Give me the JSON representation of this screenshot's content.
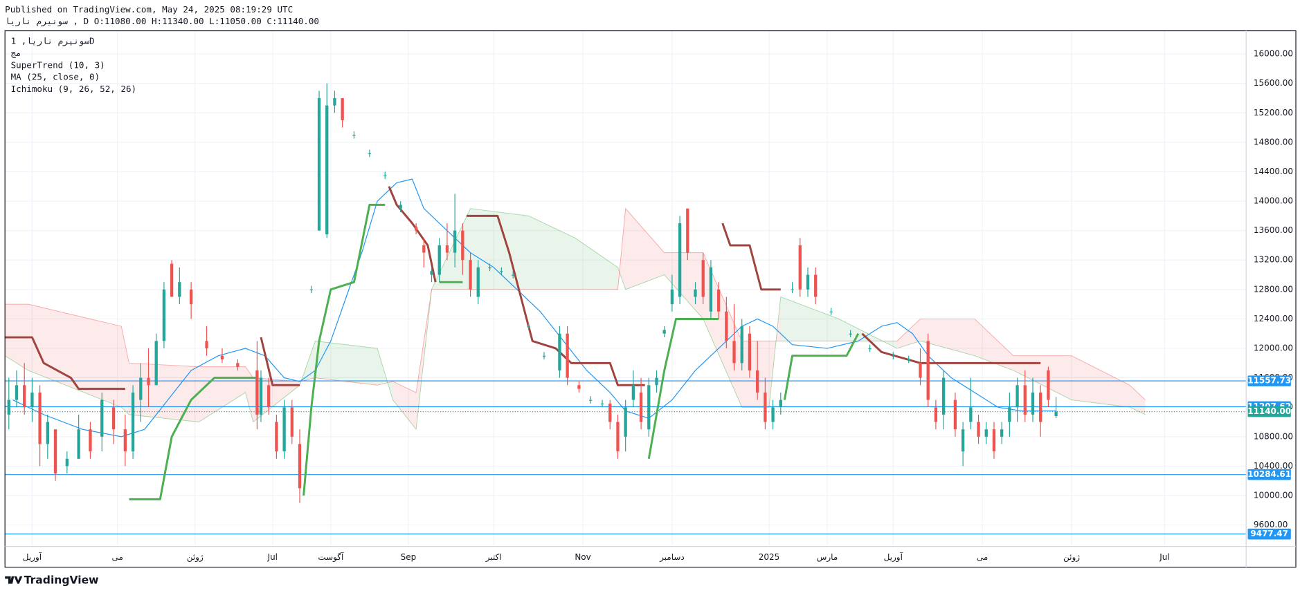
{
  "header": {
    "published": "Published on TradingView.com, May 24, 2025 08:19:29 UTC",
    "symbol_line": "سونیرم ناریا , D O:11080.00 H:11340.00 L:11050.00 C:11140.00"
  },
  "footer": {
    "brand": "TradingView"
  },
  "chart_data": {
    "type": "candlestick",
    "legend": [
      "سونیرم ناریا, 1D",
      "مج",
      "SuperTrend (10, 3)",
      "MA (25, close, 0)",
      "Ichimoku (9, 26, 52, 26)"
    ],
    "up_color": "#26a69a",
    "down_color": "#ef5350",
    "xlim": [
      0,
      320
    ],
    "xticks": [
      {
        "value": 7,
        "label": "آوریل"
      },
      {
        "value": 29,
        "label": "می"
      },
      {
        "value": 49,
        "label": "ژوئن"
      },
      {
        "value": 69,
        "label": "Jul"
      },
      {
        "value": 84,
        "label": "آگوست"
      },
      {
        "value": 104,
        "label": "Sep"
      },
      {
        "value": 126,
        "label": "اکتبر"
      },
      {
        "value": 149,
        "label": "Nov"
      },
      {
        "value": 172,
        "label": "دسامبر"
      },
      {
        "value": 197,
        "label": "2025"
      },
      {
        "value": 212,
        "label": "مارس"
      },
      {
        "value": 229,
        "label": "آوریل"
      },
      {
        "value": 252,
        "label": "می"
      },
      {
        "value": 275,
        "label": "ژوئن"
      },
      {
        "value": 299,
        "label": "Jul"
      }
    ],
    "ylim": [
      9308,
      16315
    ],
    "yticks": [
      {
        "value": 9600,
        "label": "9600.00"
      },
      {
        "value": 10000,
        "label": "10000.00"
      },
      {
        "value": 10400,
        "label": "10400.00"
      },
      {
        "value": 10800,
        "label": "10800.00"
      },
      {
        "value": 11200,
        "label": "11200.00"
      },
      {
        "value": 11600,
        "label": "11600.00"
      },
      {
        "value": 12000,
        "label": "12000.00"
      },
      {
        "value": 12400,
        "label": "12400.00"
      },
      {
        "value": 12800,
        "label": "12800.00"
      },
      {
        "value": 13200,
        "label": "13200.00"
      },
      {
        "value": 13600,
        "label": "13600.00"
      },
      {
        "value": 14000,
        "label": "14000.00"
      },
      {
        "value": 14400,
        "label": "14400.00"
      },
      {
        "value": 14800,
        "label": "14800.00"
      },
      {
        "value": 15200,
        "label": "15200.00"
      },
      {
        "value": 15600,
        "label": "15600.00"
      },
      {
        "value": 16000,
        "label": "16000.00"
      }
    ],
    "grid": true,
    "candles": {
      "x": [
        1,
        3,
        5,
        7,
        9,
        11,
        13,
        16,
        19,
        22,
        25,
        28,
        31,
        33,
        35,
        37,
        39,
        41,
        43,
        45,
        48,
        52,
        56,
        60,
        65,
        66,
        68,
        70,
        72,
        74,
        76,
        79,
        81,
        83,
        85,
        87,
        90,
        94,
        98,
        102,
        106,
        108,
        110,
        112,
        114,
        116,
        118,
        120,
        122,
        125,
        128,
        131,
        135,
        139,
        143,
        145,
        148,
        151,
        154,
        156,
        158,
        160,
        162,
        164,
        166,
        168,
        170,
        172,
        174,
        176,
        178,
        180,
        182,
        184,
        186,
        188,
        190,
        192,
        194,
        196,
        198,
        200,
        203,
        205,
        207,
        209,
        213,
        218,
        223,
        229,
        233,
        236,
        238,
        240,
        242,
        245,
        247,
        249,
        251,
        253,
        255,
        257,
        259,
        261,
        263,
        265,
        267,
        269,
        271
      ],
      "open": [
        11100,
        11300,
        11500,
        11200,
        11400,
        10700,
        10900,
        10400,
        10500,
        10900,
        10800,
        11200,
        10900,
        10600,
        11300,
        11600,
        11500,
        12100,
        13150,
        12700,
        12800,
        12100,
        11900,
        11800,
        11700,
        11100,
        11500,
        11000,
        10600,
        11200,
        10700,
        12800,
        13600,
        13550,
        15300,
        15400,
        14900,
        14650,
        14350,
        13900,
        13650,
        13400,
        13000,
        13000,
        13400,
        13300,
        13600,
        13200,
        12700,
        13100,
        13050,
        13000,
        12300,
        11900,
        11700,
        12200,
        11500,
        11300,
        11250,
        11250,
        11000,
        10800,
        11300,
        11400,
        10900,
        11500,
        12200,
        12600,
        12700,
        13900,
        12700,
        13200,
        12500,
        12800,
        12500,
        12100,
        11800,
        12200,
        11700,
        11400,
        11000,
        11200,
        12800,
        13400,
        12800,
        13000,
        12500,
        12200,
        12000,
        11900,
        11850,
        11800,
        12100,
        11200,
        11100,
        11300,
        10600,
        11000,
        11000,
        10800,
        10900,
        10800,
        11000,
        11200,
        11500,
        11100,
        11400,
        11700,
        11080
      ],
      "high": [
        11600,
        11700,
        11800,
        11600,
        11500,
        11100,
        10900,
        10600,
        11100,
        11000,
        11400,
        11300,
        11100,
        11500,
        11800,
        12000,
        12200,
        12900,
        13200,
        13100,
        12900,
        12300,
        12000,
        11850,
        12100,
        11700,
        11600,
        11100,
        11300,
        11300,
        10900,
        12850,
        15500,
        15600,
        15500,
        15400,
        14950,
        14700,
        14400,
        14000,
        13700,
        13500,
        13100,
        13500,
        13700,
        14100,
        13700,
        13300,
        13200,
        13150,
        13100,
        13050,
        12350,
        11950,
        12300,
        12300,
        11550,
        11350,
        11300,
        11300,
        11100,
        11300,
        11700,
        11600,
        11600,
        11700,
        12300,
        13000,
        13800,
        13900,
        12900,
        13300,
        13200,
        12900,
        12700,
        12600,
        12400,
        12300,
        12100,
        11600,
        11300,
        11400,
        12900,
        13500,
        13100,
        13100,
        12550,
        12250,
        12050,
        11950,
        11900,
        12000,
        12200,
        11300,
        11700,
        11400,
        11000,
        11600,
        11100,
        11000,
        11000,
        11000,
        11400,
        11600,
        11700,
        11600,
        11500,
        11750,
        11340
      ],
      "low": [
        10900,
        11200,
        11100,
        11000,
        10400,
        10500,
        10200,
        10300,
        10500,
        10500,
        10600,
        10700,
        10400,
        10500,
        11000,
        11200,
        11500,
        12000,
        12700,
        12600,
        12400,
        11900,
        11800,
        11700,
        10900,
        11000,
        11100,
        10500,
        10500,
        10700,
        9900,
        12750,
        13600,
        13500,
        15200,
        15000,
        14850,
        14600,
        14300,
        13850,
        13550,
        13100,
        12900,
        12900,
        13200,
        13100,
        13000,
        12700,
        12600,
        13050,
        13000,
        12950,
        12250,
        11850,
        11600,
        11500,
        11400,
        11250,
        11200,
        10900,
        10500,
        10600,
        11200,
        10900,
        10800,
        11400,
        12150,
        12500,
        12600,
        13200,
        12600,
        12600,
        12400,
        12400,
        12000,
        11700,
        11700,
        11600,
        11300,
        10900,
        10900,
        11100,
        12750,
        12700,
        12700,
        12600,
        12450,
        12150,
        11950,
        11850,
        11800,
        11500,
        11200,
        10900,
        10900,
        10800,
        10400,
        10900,
        10700,
        10700,
        10500,
        10700,
        10800,
        11000,
        11000,
        11000,
        10800,
        11200,
        11050
      ],
      "close": [
        11300,
        11500,
        11200,
        11400,
        10700,
        11000,
        10300,
        10500,
        10900,
        10600,
        11300,
        10900,
        10600,
        11400,
        11600,
        11500,
        12100,
        12800,
        12700,
        12900,
        12600,
        12000,
        11850,
        11750,
        11100,
        11600,
        11200,
        10600,
        11200,
        10800,
        10100,
        12800,
        15400,
        15300,
        15400,
        15100,
        14900,
        14650,
        14350,
        13950,
        13600,
        13300,
        13050,
        13400,
        13300,
        13600,
        13200,
        12800,
        13100,
        13100,
        13050,
        13000,
        12300,
        11900,
        12200,
        11600,
        11450,
        11300,
        11250,
        11000,
        10600,
        11200,
        11500,
        11000,
        11500,
        11600,
        12250,
        12800,
        13700,
        13300,
        12800,
        12700,
        13100,
        12500,
        12100,
        11800,
        12300,
        11700,
        11400,
        11000,
        11200,
        11300,
        12800,
        12800,
        13000,
        12700,
        12500,
        12200,
        12000,
        11900,
        11850,
        11600,
        11300,
        11000,
        11600,
        10900,
        10900,
        11200,
        10800,
        10900,
        10600,
        10900,
        11200,
        11500,
        11100,
        11400,
        11000,
        11300,
        11140
      ]
    },
    "ma": {
      "color": "#2196f3",
      "x": [
        2,
        10,
        20,
        30,
        36,
        42,
        48,
        55,
        62,
        67,
        72,
        76,
        80,
        84,
        88,
        92,
        96,
        101,
        105,
        108,
        114,
        120,
        126,
        132,
        138,
        144,
        150,
        156,
        160,
        166,
        172,
        178,
        184,
        190,
        194,
        198,
        203,
        212,
        220,
        226,
        230,
        234,
        238,
        244,
        250,
        256,
        262,
        271
      ],
      "values": [
        11300,
        11100,
        10900,
        10800,
        10900,
        11300,
        11700,
        11900,
        12000,
        11900,
        11600,
        11550,
        11700,
        12100,
        12700,
        13300,
        14000,
        14250,
        14300,
        13900,
        13600,
        13300,
        13100,
        12800,
        12500,
        12100,
        11700,
        11400,
        11150,
        11050,
        11300,
        11700,
        12000,
        12300,
        12400,
        12300,
        12050,
        12000,
        12100,
        12300,
        12350,
        12200,
        11900,
        11600,
        11400,
        11200,
        11150,
        11150
      ]
    },
    "supertrend": {
      "up_color": "#4caf50",
      "down_color": "#a0443f",
      "x": [
        0,
        7,
        10,
        17,
        19,
        31,
        32,
        40,
        43,
        48,
        54,
        65,
        66,
        69,
        76,
        77,
        79,
        81,
        84,
        90,
        94,
        98,
        99,
        101,
        105,
        109,
        111,
        112,
        118,
        119,
        127,
        130,
        133,
        136,
        142,
        146,
        156,
        158,
        165,
        166,
        170,
        173,
        184,
        185,
        187,
        192,
        195,
        200,
        201,
        203,
        217,
        220,
        221,
        226,
        236,
        267
      ],
      "up": [
        null,
        null,
        null,
        null,
        null,
        null,
        9950,
        9950,
        10800,
        11300,
        11600,
        11600,
        null,
        null,
        null,
        10000,
        11200,
        12100,
        12800,
        12900,
        13950,
        13950,
        null,
        null,
        null,
        null,
        null,
        12900,
        12900,
        null,
        null,
        null,
        null,
        null,
        null,
        null,
        null,
        null,
        null,
        10500,
        11700,
        12400,
        12400,
        null,
        null,
        null,
        null,
        null,
        11300,
        11900,
        11900,
        12200,
        null,
        null,
        null,
        null
      ],
      "down": [
        12150,
        12150,
        11800,
        11600,
        11450,
        11450,
        null,
        null,
        null,
        null,
        null,
        null,
        12150,
        11500,
        11500,
        null,
        null,
        null,
        null,
        null,
        null,
        null,
        14200,
        13950,
        13700,
        13400,
        12900,
        null,
        null,
        13800,
        13800,
        13300,
        12700,
        12100,
        12000,
        11800,
        11800,
        11500,
        11500,
        null,
        null,
        null,
        null,
        13700,
        13400,
        13400,
        12800,
        12800,
        null,
        null,
        null,
        null,
        12200,
        11950,
        11800,
        11800
      ]
    },
    "ichimoku": {
      "bull_color": "#4caf50",
      "bear_color": "#ef5350",
      "x": [
        0,
        6,
        30,
        32,
        50,
        62,
        64,
        76,
        80,
        96,
        100,
        106,
        110,
        120,
        135,
        147,
        158,
        160,
        170,
        180,
        190,
        197,
        200,
        215,
        230,
        236,
        250,
        260,
        275,
        290,
        294
      ],
      "lead1": [
        11900,
        11700,
        11200,
        11100,
        11000,
        11400,
        11000,
        11500,
        12100,
        12000,
        11300,
        10900,
        12800,
        13900,
        13800,
        13500,
        13100,
        12800,
        13000,
        12400,
        11200,
        11200,
        12700,
        12400,
        12000,
        12100,
        11900,
        11700,
        11300,
        11200,
        11100
      ],
      "lead2": [
        12600,
        12600,
        12300,
        11800,
        11750,
        11750,
        11600,
        11550,
        11600,
        11500,
        11550,
        11400,
        12800,
        12800,
        12800,
        12800,
        12800,
        13900,
        13300,
        13300,
        12100,
        12100,
        12100,
        12100,
        12100,
        12400,
        12400,
        11900,
        11900,
        11500,
        11300
      ]
    },
    "price_lines": [
      {
        "value": 11557.73,
        "label": "11557.73",
        "color": "#2196f3",
        "dashed": false
      },
      {
        "value": 11207.62,
        "label": "11207.62",
        "color": "#2196f3",
        "dashed": false
      },
      {
        "value": 11140,
        "label": "11140.00",
        "color": "#26a69a",
        "dashed": true
      },
      {
        "value": 10284.61,
        "label": "10284.61",
        "color": "#2196f3",
        "dashed": false
      },
      {
        "value": 9477.47,
        "label": "9477.47",
        "color": "#2196f3",
        "dashed": false
      }
    ]
  }
}
